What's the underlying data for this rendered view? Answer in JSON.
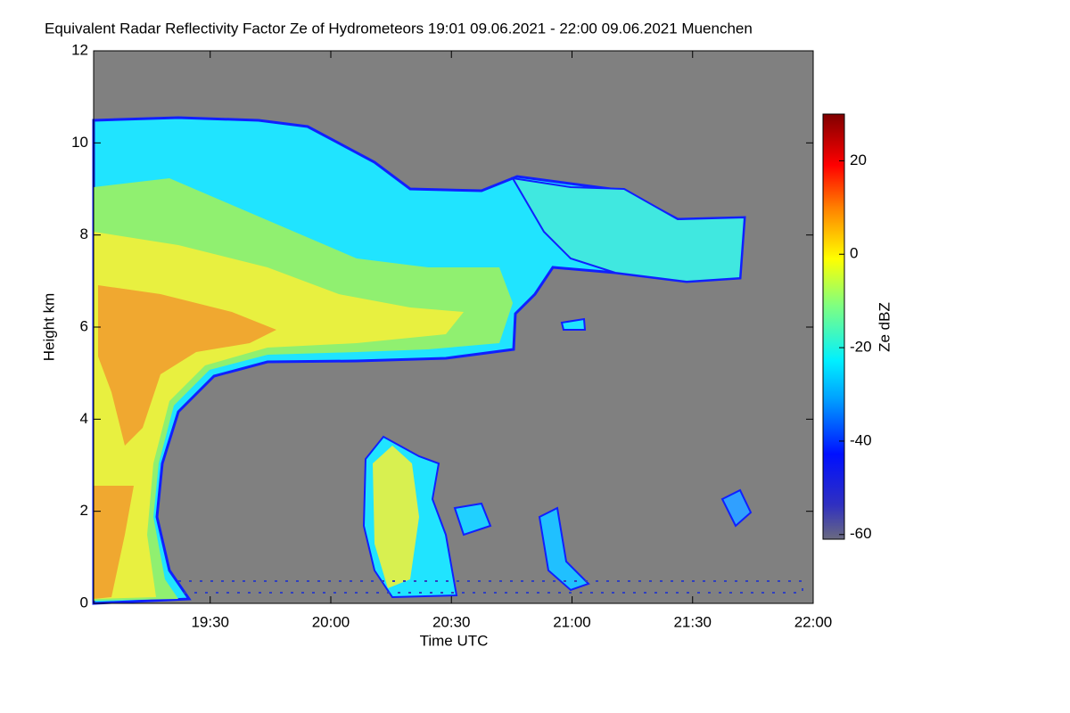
{
  "chart_data": {
    "type": "heatmap",
    "title": "Equivalent Radar Reflectivity Factor Ze of Hydrometeors   19:01 09.06.2021 - 22:00 09.06.2021 Muenchen",
    "xlabel": "Time UTC",
    "ylabel": "Height km",
    "xlim": [
      19.0167,
      22.0
    ],
    "xticks": [
      {
        "value": 19.5,
        "label": "19:30"
      },
      {
        "value": 20.0,
        "label": "20:00"
      },
      {
        "value": 20.5,
        "label": "20:30"
      },
      {
        "value": 21.0,
        "label": "21:00"
      },
      {
        "value": 21.5,
        "label": "21:30"
      },
      {
        "value": 22.0,
        "label": "22:00"
      }
    ],
    "ylim": [
      0,
      12
    ],
    "yticks": [
      0,
      2,
      4,
      6,
      8,
      10,
      12
    ],
    "colorbar": {
      "label": "Ze dBZ",
      "lim": [
        -61,
        30
      ],
      "ticks": [
        -60,
        -40,
        -20,
        0,
        20
      ]
    }
  }
}
